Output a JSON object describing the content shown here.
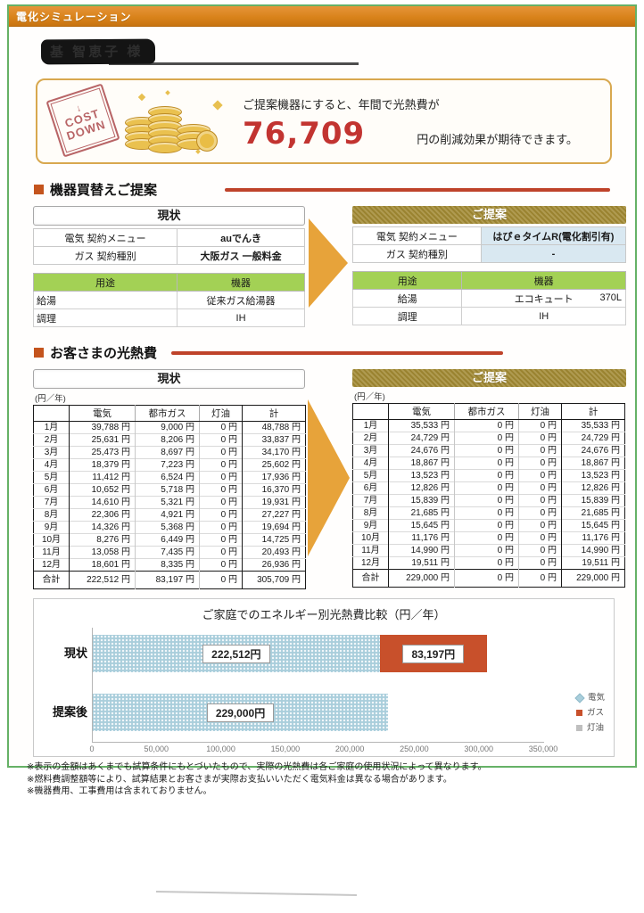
{
  "page": {
    "header_bar": "電化シミュレーション",
    "customer_name": "基 智恵子 様",
    "cost_banner": {
      "stamp_line1": "COST",
      "stamp_line2": "DOWN",
      "stamp_arrow": "↓",
      "lead_text": "ご提案機器にすると、年間で光熱費が",
      "amount": "76,709",
      "tail_text": "円の削減効果が期待できます。"
    }
  },
  "equipment_section": {
    "title": "機器買替えご提案",
    "current": {
      "header": "現状",
      "contract_rows": [
        {
          "label": "電気  契約メニュー",
          "value": "auでんき"
        },
        {
          "label": "ガス  契約種別",
          "value": "大阪ガス 一般料金"
        }
      ],
      "usage_headers": [
        "用途",
        "機器"
      ],
      "usage_rows": [
        {
          "use": "給湯",
          "device": "従来ガス給湯器",
          "size": ""
        },
        {
          "use": "調理",
          "device": "IH",
          "size": ""
        }
      ]
    },
    "proposal": {
      "header": "ご提案",
      "contract_rows": [
        {
          "label": "電気  契約メニュー",
          "value": "はぴｅタイムR(電化割引有)"
        },
        {
          "label": "ガス  契約種別",
          "value": "-"
        }
      ],
      "usage_headers": [
        "用途",
        "機器"
      ],
      "usage_rows": [
        {
          "use": "給湯",
          "device": "エコキュート",
          "size": "370L"
        },
        {
          "use": "調理",
          "device": "IH",
          "size": ""
        }
      ]
    }
  },
  "cost_section": {
    "title": "お客さまの光熱費",
    "unit_label": "(円／年)",
    "columns": [
      "",
      "電気",
      "都市ガス",
      "灯油",
      "計"
    ],
    "current": {
      "header": "現状",
      "rows": [
        {
          "month": "1月",
          "electric": "39,788 円",
          "gas": "9,000 円",
          "kerosene": "0 円",
          "total": "48,788 円"
        },
        {
          "month": "2月",
          "electric": "25,631 円",
          "gas": "8,206 円",
          "kerosene": "0 円",
          "total": "33,837 円"
        },
        {
          "month": "3月",
          "electric": "25,473 円",
          "gas": "8,697 円",
          "kerosene": "0 円",
          "total": "34,170 円"
        },
        {
          "month": "4月",
          "electric": "18,379 円",
          "gas": "7,223 円",
          "kerosene": "0 円",
          "total": "25,602 円"
        },
        {
          "month": "5月",
          "electric": "11,412 円",
          "gas": "6,524 円",
          "kerosene": "0 円",
          "total": "17,936 円"
        },
        {
          "month": "6月",
          "electric": "10,652 円",
          "gas": "5,718 円",
          "kerosene": "0 円",
          "total": "16,370 円"
        },
        {
          "month": "7月",
          "electric": "14,610 円",
          "gas": "5,321 円",
          "kerosene": "0 円",
          "total": "19,931 円"
        },
        {
          "month": "8月",
          "electric": "22,306 円",
          "gas": "4,921 円",
          "kerosene": "0 円",
          "total": "27,227 円"
        },
        {
          "month": "9月",
          "electric": "14,326 円",
          "gas": "5,368 円",
          "kerosene": "0 円",
          "total": "19,694 円"
        },
        {
          "month": "10月",
          "electric": "8,276 円",
          "gas": "6,449 円",
          "kerosene": "0 円",
          "total": "14,725 円"
        },
        {
          "month": "11月",
          "electric": "13,058 円",
          "gas": "7,435 円",
          "kerosene": "0 円",
          "total": "20,493 円"
        },
        {
          "month": "12月",
          "electric": "18,601 円",
          "gas": "8,335 円",
          "kerosene": "0 円",
          "total": "26,936 円"
        }
      ],
      "total": {
        "month": "合計",
        "electric": "222,512 円",
        "gas": "83,197 円",
        "kerosene": "0 円",
        "total": "305,709 円"
      }
    },
    "proposal": {
      "header": "ご提案",
      "rows": [
        {
          "month": "1月",
          "electric": "35,533 円",
          "gas": "0 円",
          "kerosene": "0 円",
          "total": "35,533 円"
        },
        {
          "month": "2月",
          "electric": "24,729 円",
          "gas": "0 円",
          "kerosene": "0 円",
          "total": "24,729 円"
        },
        {
          "month": "3月",
          "electric": "24,676 円",
          "gas": "0 円",
          "kerosene": "0 円",
          "total": "24,676 円"
        },
        {
          "month": "4月",
          "electric": "18,867 円",
          "gas": "0 円",
          "kerosene": "0 円",
          "total": "18,867 円"
        },
        {
          "month": "5月",
          "electric": "13,523 円",
          "gas": "0 円",
          "kerosene": "0 円",
          "total": "13,523 円"
        },
        {
          "month": "6月",
          "electric": "12,826 円",
          "gas": "0 円",
          "kerosene": "0 円",
          "total": "12,826 円"
        },
        {
          "month": "7月",
          "electric": "15,839 円",
          "gas": "0 円",
          "kerosene": "0 円",
          "total": "15,839 円"
        },
        {
          "month": "8月",
          "electric": "21,685 円",
          "gas": "0 円",
          "kerosene": "0 円",
          "total": "21,685 円"
        },
        {
          "month": "9月",
          "electric": "15,645 円",
          "gas": "0 円",
          "kerosene": "0 円",
          "total": "15,645 円"
        },
        {
          "month": "10月",
          "electric": "11,176 円",
          "gas": "0 円",
          "kerosene": "0 円",
          "total": "11,176 円"
        },
        {
          "month": "11月",
          "electric": "14,990 円",
          "gas": "0 円",
          "kerosene": "0 円",
          "total": "14,990 円"
        },
        {
          "month": "12月",
          "electric": "19,511 円",
          "gas": "0 円",
          "kerosene": "0 円",
          "total": "19,511 円"
        }
      ],
      "total": {
        "month": "合計",
        "electric": "229,000 円",
        "gas": "0 円",
        "kerosene": "0 円",
        "total": "229,000 円"
      }
    }
  },
  "chart_data": {
    "type": "bar",
    "orientation": "horizontal",
    "stacked": true,
    "title": "ご家庭でのエネルギー別光熱費比較（円／年）",
    "categories": [
      "現状",
      "提案後"
    ],
    "series": [
      {
        "name": "電気",
        "color": "#a9cedb",
        "pattern": "dotted",
        "values": [
          222512,
          229000
        ],
        "labels": [
          "222,512円",
          "229,000円"
        ]
      },
      {
        "name": "ガス",
        "color": "#c8502b",
        "pattern": "",
        "values": [
          83197,
          0
        ],
        "labels": [
          "83,197円",
          ""
        ]
      },
      {
        "name": "灯油",
        "color": "#bfbfbf",
        "pattern": "",
        "values": [
          0,
          0
        ],
        "labels": [
          "",
          ""
        ]
      }
    ],
    "xlim": [
      0,
      350000
    ],
    "x_ticks": [
      "0",
      "50,000",
      "100,000",
      "150,000",
      "200,000",
      "250,000",
      "300,000",
      "350,000"
    ],
    "grid": false,
    "legend_position": "right",
    "legend_items": [
      {
        "label": "電気",
        "color": "#a9cedb",
        "shape": "diamond"
      },
      {
        "label": "ガス",
        "color": "#c8502b",
        "shape": "square"
      },
      {
        "label": "灯油",
        "color": "#bfbfbf",
        "shape": "square"
      }
    ]
  },
  "footnotes": [
    "※表示の金額はあくまでも試算条件にもとづいたもので、実際の光熱費は各ご家庭の使用状況によって異なります。",
    "※燃料費調整額等により、試算結果とお客さまが実際お支払いいただく電気料金は異なる場合があります。",
    "※機器費用、工事費用は含まれておりません。"
  ],
  "colors": {
    "topbar_orange": "#d9831b",
    "frame_green": "#66b166",
    "banner_border_gold": "#d8a84f",
    "amount_red": "#c23431",
    "section_rule_red": "#bf432a",
    "proposal_header_gold": "#a28a33",
    "table_header_green": "#a3d155",
    "highlight_blue": "#d9e8f1",
    "arrow_gold": "#e7a33a"
  }
}
